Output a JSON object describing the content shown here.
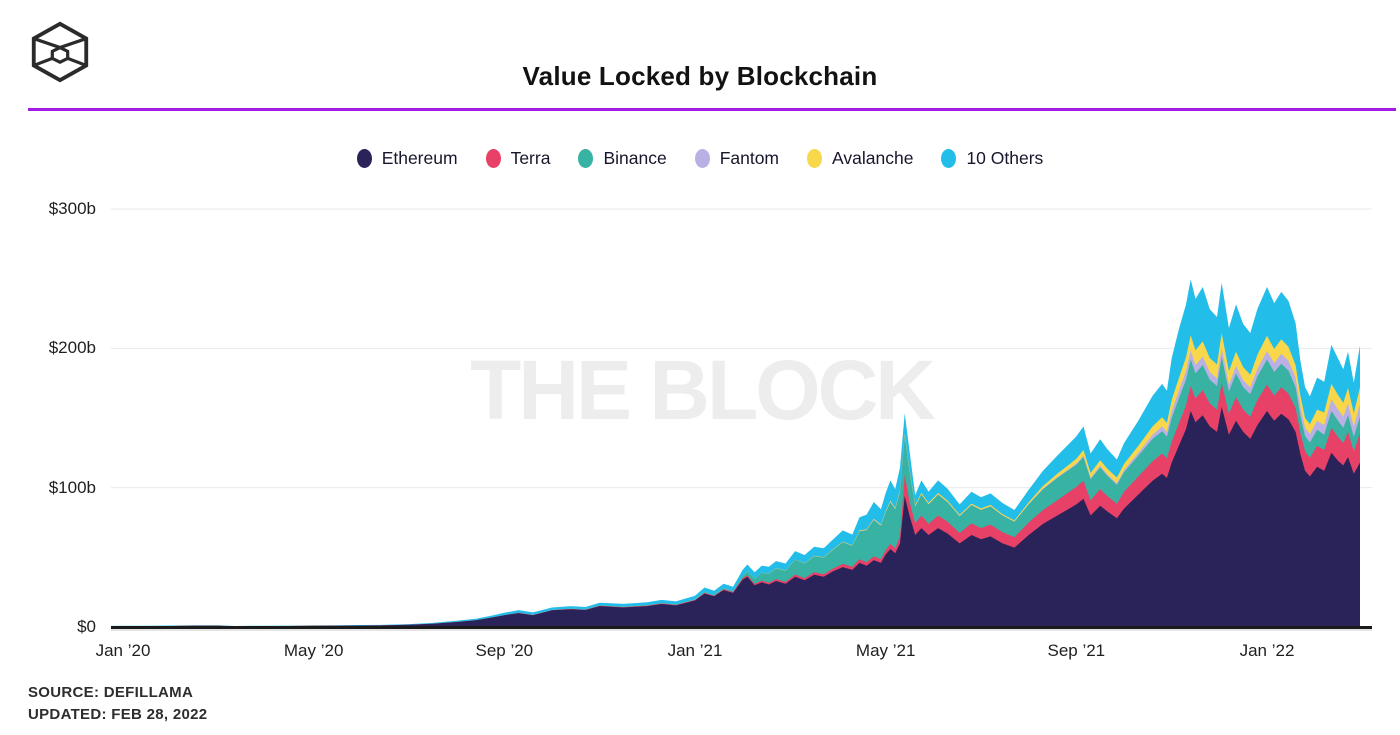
{
  "header": {
    "title": "Value Locked by Blockchain"
  },
  "watermark": "THE BLOCK",
  "footer": {
    "source": "SOURCE: DEFILLAMA",
    "updated": "UPDATED: FEB 28, 2022"
  },
  "colors": {
    "accent_rule": "#a31be5",
    "axis_line": "#1b1b1b",
    "gridline": "#e9e9e9",
    "watermark": "#ededed",
    "logo": "#2b2b2b"
  },
  "chart_data": {
    "type": "area",
    "stacked": true,
    "title": "Value Locked by Blockchain",
    "xlabel": "",
    "ylabel": "",
    "ylim": [
      0,
      300
    ],
    "grid": "horizontal",
    "legend_position": "top-center",
    "x_unit": "months since Jan 2020",
    "y_unit": "USD billions",
    "y_ticks": [
      {
        "v": 0,
        "label": "$0"
      },
      {
        "v": 100,
        "label": "$100b"
      },
      {
        "v": 200,
        "label": "$200b"
      },
      {
        "v": 300,
        "label": "$300b"
      }
    ],
    "x_ticks": [
      {
        "t": 0,
        "label": "Jan ’20"
      },
      {
        "t": 4,
        "label": "May ’20"
      },
      {
        "t": 8,
        "label": "Sep ’20"
      },
      {
        "t": 12,
        "label": "Jan ’21"
      },
      {
        "t": 16,
        "label": "May ’21"
      },
      {
        "t": 20,
        "label": "Sep ’21"
      },
      {
        "t": 24,
        "label": "Jan ’22"
      }
    ],
    "x": [
      -0.25,
      0,
      0.5,
      1,
      1.5,
      2,
      2.35,
      2.7,
      3,
      3.5,
      4,
      4.5,
      5,
      5.5,
      6,
      6.5,
      7,
      7.4,
      7.7,
      8,
      8.3,
      8.6,
      9,
      9.4,
      9.7,
      10,
      10.5,
      11,
      11.3,
      11.6,
      12,
      12.2,
      12.4,
      12.6,
      12.8,
      13,
      13.1,
      13.25,
      13.4,
      13.55,
      13.7,
      13.9,
      14.1,
      14.3,
      14.5,
      14.7,
      14.9,
      15.1,
      15.3,
      15.45,
      15.6,
      15.75,
      15.9,
      16,
      16.1,
      16.2,
      16.3,
      16.4,
      16.5,
      16.62,
      16.75,
      16.9,
      17.1,
      17.3,
      17.55,
      17.8,
      18,
      18.2,
      18.45,
      18.7,
      19,
      19.3,
      19.6,
      19.85,
      20,
      20.15,
      20.3,
      20.5,
      20.65,
      20.85,
      21,
      21.3,
      21.6,
      21.8,
      21.9,
      22,
      22.15,
      22.3,
      22.4,
      22.5,
      22.65,
      22.8,
      22.95,
      23.05,
      23.2,
      23.35,
      23.5,
      23.65,
      23.8,
      24,
      24.15,
      24.3,
      24.45,
      24.6,
      24.7,
      24.8,
      24.9,
      25.05,
      25.2,
      25.35,
      25.5,
      25.6,
      25.7,
      25.82,
      25.95
    ],
    "series": [
      {
        "name": "Ethereum",
        "color": "#2a2359",
        "values": [
          0.55,
          0.6,
          0.65,
          0.75,
          0.9,
          0.95,
          0.55,
          0.65,
          0.7,
          0.75,
          0.85,
          0.95,
          1.05,
          1.2,
          1.6,
          2.3,
          3.6,
          4.8,
          6.5,
          8.5,
          10,
          8.5,
          12,
          12.8,
          12.2,
          15,
          14,
          15,
          16.5,
          15.5,
          19,
          24,
          22,
          26.5,
          24.5,
          34,
          36,
          30,
          32,
          30.5,
          33,
          31,
          36,
          33.5,
          37.5,
          36,
          40,
          43,
          41,
          46,
          44,
          48,
          46,
          52,
          56,
          53,
          60,
          94,
          80,
          66,
          71,
          66,
          71,
          67,
          60,
          66,
          63,
          65,
          60,
          57,
          66,
          74,
          80,
          85,
          88,
          92,
          80,
          87,
          83,
          78,
          85,
          95,
          105,
          110,
          107,
          118,
          130,
          142,
          155,
          147,
          152,
          144,
          140,
          158,
          138,
          148,
          140,
          135,
          145,
          155,
          148,
          153,
          149,
          140,
          124,
          112,
          108,
          115,
          112,
          125,
          119,
          116,
          122,
          110,
          118
        ]
      },
      {
        "name": "Terra",
        "color": "#e84168",
        "values": [
          0,
          0,
          0,
          0,
          0,
          0,
          0,
          0,
          0,
          0,
          0,
          0,
          0,
          0,
          0,
          0,
          0,
          0,
          0,
          0,
          0.1,
          0.1,
          0.15,
          0.2,
          0.2,
          0.3,
          0.3,
          0.35,
          0.35,
          0.35,
          0.4,
          0.5,
          0.5,
          0.6,
          0.6,
          1,
          1.2,
          1.1,
          1.3,
          1.2,
          1.4,
          1.4,
          1.7,
          1.6,
          1.8,
          1.8,
          2,
          2.3,
          2.2,
          2.6,
          2.5,
          2.8,
          2.7,
          3.2,
          3.6,
          3.4,
          5,
          15,
          10,
          8.5,
          9,
          8,
          9,
          8.5,
          7.5,
          8.5,
          8,
          8.5,
          8,
          7.5,
          9,
          10,
          11,
          12,
          12.5,
          13,
          11,
          12,
          11,
          10.5,
          12,
          13,
          14,
          14.5,
          14,
          15,
          16,
          17,
          18,
          17,
          18,
          16.5,
          16,
          17,
          15,
          17,
          16,
          16,
          18,
          19,
          18,
          19,
          18.5,
          17,
          15,
          14,
          13.5,
          15,
          15,
          18,
          17,
          16,
          18,
          16,
          21
        ]
      },
      {
        "name": "Binance",
        "color": "#38b2a2",
        "values": [
          0,
          0,
          0,
          0,
          0,
          0,
          0,
          0,
          0,
          0,
          0,
          0,
          0,
          0,
          0,
          0,
          0,
          0,
          0,
          0,
          0.05,
          0.05,
          0.08,
          0.1,
          0.1,
          0.12,
          0.15,
          0.2,
          0.2,
          0.2,
          0.3,
          0.4,
          0.4,
          0.5,
          0.5,
          1.5,
          2.5,
          3.5,
          5.5,
          6.5,
          7.5,
          8,
          10.5,
          10.5,
          11.5,
          12,
          13.5,
          15.5,
          15,
          20,
          23,
          26,
          24,
          27,
          30,
          28,
          32,
          28,
          22,
          12,
          15,
          14,
          15,
          14,
          12,
          13,
          13,
          13,
          12,
          11,
          13,
          15,
          16,
          16,
          16,
          17,
          15,
          15.5,
          14.5,
          13.5,
          14,
          15,
          16,
          16,
          15.5,
          17,
          18,
          18.5,
          19,
          18,
          18,
          17,
          17,
          19,
          16,
          17,
          16,
          16,
          17,
          18,
          17,
          17,
          16.5,
          15,
          12.5,
          11,
          11,
          11.5,
          11,
          12,
          11.5,
          11,
          12,
          10.5,
          12
        ]
      },
      {
        "name": "Fantom",
        "color": "#bab0e4",
        "values": [
          0,
          0,
          0,
          0,
          0,
          0,
          0,
          0,
          0,
          0,
          0,
          0,
          0,
          0,
          0,
          0,
          0,
          0,
          0,
          0,
          0,
          0,
          0,
          0,
          0,
          0,
          0,
          0,
          0,
          0,
          0,
          0,
          0,
          0,
          0,
          0,
          0,
          0,
          0,
          0,
          0,
          0,
          0,
          0,
          0,
          0.05,
          0.08,
          0.1,
          0.1,
          0.2,
          0.2,
          0.3,
          0.3,
          0.3,
          0.3,
          0.3,
          0.4,
          0.4,
          0.3,
          0.2,
          0.25,
          0.2,
          0.2,
          0.2,
          0.2,
          0.2,
          0.2,
          0.2,
          0.2,
          0.2,
          0.3,
          0.4,
          0.5,
          0.6,
          0.8,
          1,
          1,
          1.2,
          1.2,
          1.2,
          1.5,
          2,
          3,
          3.5,
          3.5,
          5,
          5.5,
          6,
          6.5,
          6,
          6,
          5.5,
          5.5,
          6,
          5,
          5.5,
          5,
          5,
          5.5,
          6,
          6.5,
          7,
          7,
          7,
          6.5,
          6,
          6,
          6.5,
          7,
          8.5,
          8,
          8,
          8.5,
          7.5,
          9
        ]
      },
      {
        "name": "Avalanche",
        "color": "#f8d74b",
        "values": [
          0,
          0,
          0,
          0,
          0,
          0,
          0,
          0,
          0,
          0,
          0,
          0,
          0,
          0,
          0,
          0,
          0,
          0,
          0,
          0,
          0,
          0,
          0,
          0,
          0,
          0,
          0,
          0,
          0,
          0,
          0.05,
          0.08,
          0.08,
          0.08,
          0.08,
          0.12,
          0.15,
          0.15,
          0.18,
          0.18,
          0.2,
          0.2,
          0.25,
          0.25,
          0.3,
          0.3,
          0.35,
          0.4,
          0.4,
          0.5,
          0.5,
          0.6,
          0.6,
          0.7,
          0.8,
          0.8,
          1,
          1.5,
          1.2,
          1,
          1,
          1,
          1,
          1,
          0.8,
          0.9,
          0.9,
          0.9,
          0.8,
          0.8,
          1.2,
          1.8,
          2.5,
          3,
          3.5,
          4,
          3.5,
          4,
          4,
          4,
          4.5,
          5,
          6,
          6.5,
          6.5,
          8,
          9,
          10,
          11,
          10.5,
          11,
          10,
          10,
          11,
          9.5,
          10,
          9.5,
          9,
          10,
          11,
          10,
          10.5,
          10,
          9,
          8,
          7,
          7,
          8,
          9,
          11,
          10.5,
          10,
          11,
          9.5,
          12
        ]
      },
      {
        "name": "10 Others",
        "color": "#22bde9",
        "values": [
          0.25,
          0.27,
          0.28,
          0.3,
          0.33,
          0.35,
          0.2,
          0.24,
          0.26,
          0.28,
          0.3,
          0.33,
          0.36,
          0.4,
          0.5,
          0.65,
          0.9,
          1.1,
          1.4,
          1.7,
          2,
          1.8,
          1.8,
          1.9,
          1.85,
          2,
          2.1,
          2.2,
          2.4,
          2.3,
          2.7,
          3.4,
          3.1,
          3.3,
          3.2,
          4.5,
          5,
          4.5,
          5,
          4.8,
          5.2,
          5,
          6,
          5.8,
          6.5,
          6.3,
          7,
          8,
          7.6,
          9.5,
          10.5,
          12,
          11,
          13,
          14.5,
          13.5,
          16,
          14.5,
          13,
          7,
          9,
          8,
          9,
          8.5,
          7.5,
          8.5,
          8,
          8.3,
          8,
          7.5,
          9,
          11,
          13,
          15,
          16,
          17,
          14,
          15,
          14,
          13,
          15,
          18,
          22,
          24,
          23,
          30,
          35,
          38,
          40,
          37,
          39,
          35,
          34,
          36,
          31,
          34,
          31,
          30,
          33,
          35,
          33,
          34,
          33,
          30,
          25,
          22,
          20,
          23,
          22,
          28,
          26,
          24,
          26,
          22,
          30
        ]
      }
    ]
  }
}
